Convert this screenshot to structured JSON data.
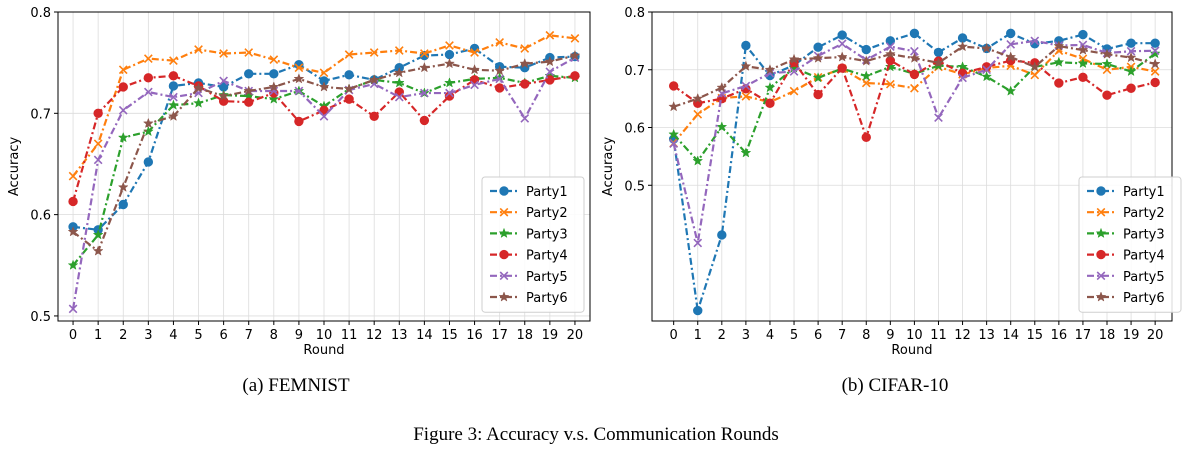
{
  "figure_caption": "Figure 3: Accuracy v.s. Communication Rounds",
  "chart_data": [
    {
      "type": "line",
      "subcaption": "(a) FEMNIST",
      "xlabel": "Round",
      "ylabel": "Accuracy",
      "x": [
        0,
        1,
        2,
        3,
        4,
        5,
        6,
        7,
        8,
        9,
        10,
        11,
        12,
        13,
        14,
        15,
        16,
        17,
        18,
        19,
        20
      ],
      "xlim": [
        -0.6,
        20.6
      ],
      "ylim": [
        0.495,
        0.8
      ],
      "yticks": [
        0.5,
        0.6,
        0.7,
        0.8
      ],
      "ytick_labels": [
        "0.5",
        "0.6",
        "0.7",
        "0.8"
      ],
      "grid": true,
      "legend_position": "lower-right",
      "series": [
        {
          "name": "Party1",
          "color": "#1f77b4",
          "marker": "circle",
          "values": [
            0.588,
            0.585,
            0.61,
            0.652,
            0.727,
            0.73,
            0.726,
            0.739,
            0.739,
            0.748,
            0.732,
            0.738,
            0.733,
            0.745,
            0.757,
            0.758,
            0.764,
            0.746,
            0.745,
            0.755,
            0.756
          ]
        },
        {
          "name": "Party2",
          "color": "#ff7f0e",
          "marker": "x",
          "values": [
            0.638,
            0.67,
            0.743,
            0.754,
            0.752,
            0.763,
            0.759,
            0.76,
            0.753,
            0.745,
            0.74,
            0.758,
            0.76,
            0.762,
            0.759,
            0.767,
            0.76,
            0.77,
            0.764,
            0.777,
            0.774
          ]
        },
        {
          "name": "Party3",
          "color": "#2ca02c",
          "marker": "star",
          "values": [
            0.55,
            0.58,
            0.676,
            0.682,
            0.708,
            0.71,
            0.718,
            0.717,
            0.714,
            0.722,
            0.707,
            0.724,
            0.733,
            0.73,
            0.72,
            0.73,
            0.734,
            0.735,
            0.73,
            0.737,
            0.735
          ]
        },
        {
          "name": "Party4",
          "color": "#d62728",
          "marker": "circle",
          "values": [
            0.613,
            0.7,
            0.726,
            0.735,
            0.737,
            0.727,
            0.712,
            0.711,
            0.72,
            0.692,
            0.703,
            0.714,
            0.697,
            0.721,
            0.693,
            0.717,
            0.733,
            0.725,
            0.729,
            0.733,
            0.737
          ]
        },
        {
          "name": "Party5",
          "color": "#9467bd",
          "marker": "x",
          "values": [
            0.507,
            0.654,
            0.703,
            0.721,
            0.716,
            0.72,
            0.732,
            0.722,
            0.722,
            0.722,
            0.697,
            0.723,
            0.729,
            0.716,
            0.72,
            0.72,
            0.728,
            0.734,
            0.695,
            0.741,
            0.755
          ]
        },
        {
          "name": "Party6",
          "color": "#8c564b",
          "marker": "star",
          "values": [
            0.583,
            0.564,
            0.627,
            0.69,
            0.697,
            0.725,
            0.717,
            0.722,
            0.726,
            0.734,
            0.726,
            0.724,
            0.733,
            0.74,
            0.745,
            0.749,
            0.743,
            0.742,
            0.749,
            0.751,
            0.757
          ]
        }
      ]
    },
    {
      "type": "line",
      "subcaption": "(b) CIFAR-10",
      "xlabel": "Round",
      "ylabel": "Accuracy",
      "x": [
        0,
        1,
        2,
        3,
        4,
        5,
        6,
        7,
        8,
        9,
        10,
        11,
        12,
        13,
        14,
        15,
        16,
        17,
        18,
        19,
        20
      ],
      "xlim": [
        -0.9,
        20.7
      ],
      "ylim": [
        0.265,
        0.8
      ],
      "yticks": [
        0.5,
        0.6,
        0.7,
        0.8
      ],
      "ytick_labels": [
        "0.5",
        "0.6",
        "0.7",
        "0.8"
      ],
      "grid": true,
      "legend_position": "lower-right",
      "series": [
        {
          "name": "Party1",
          "color": "#1f77b4",
          "marker": "circle",
          "values": [
            0.58,
            0.283,
            0.414,
            0.742,
            0.69,
            0.708,
            0.739,
            0.76,
            0.735,
            0.75,
            0.763,
            0.73,
            0.755,
            0.737,
            0.763,
            0.745,
            0.75,
            0.761,
            0.736,
            0.746,
            0.746
          ]
        },
        {
          "name": "Party2",
          "color": "#ff7f0e",
          "marker": "x",
          "values": [
            0.573,
            0.623,
            0.651,
            0.654,
            0.644,
            0.663,
            0.687,
            0.702,
            0.677,
            0.675,
            0.668,
            0.705,
            0.692,
            0.703,
            0.707,
            0.691,
            0.733,
            0.719,
            0.7,
            0.705,
            0.697
          ]
        },
        {
          "name": "Party3",
          "color": "#2ca02c",
          "marker": "star",
          "values": [
            0.588,
            0.542,
            0.601,
            0.556,
            0.669,
            0.703,
            0.686,
            0.702,
            0.689,
            0.705,
            0.693,
            0.707,
            0.705,
            0.688,
            0.663,
            0.705,
            0.713,
            0.711,
            0.71,
            0.697,
            0.728
          ]
        },
        {
          "name": "Party4",
          "color": "#d62728",
          "marker": "circle",
          "values": [
            0.672,
            0.642,
            0.65,
            0.667,
            0.642,
            0.713,
            0.657,
            0.703,
            0.583,
            0.716,
            0.692,
            0.715,
            0.694,
            0.705,
            0.716,
            0.712,
            0.677,
            0.687,
            0.656,
            0.668,
            0.678
          ]
        },
        {
          "name": "Party5",
          "color": "#9467bd",
          "marker": "x",
          "values": [
            0.572,
            0.4,
            0.659,
            0.672,
            0.694,
            0.697,
            0.724,
            0.745,
            0.717,
            0.74,
            0.732,
            0.617,
            0.686,
            0.7,
            0.744,
            0.75,
            0.742,
            0.743,
            0.729,
            0.732,
            0.733
          ]
        },
        {
          "name": "Party6",
          "color": "#8c564b",
          "marker": "star",
          "values": [
            0.636,
            0.65,
            0.669,
            0.706,
            0.7,
            0.718,
            0.72,
            0.722,
            0.715,
            0.727,
            0.72,
            0.712,
            0.74,
            0.737,
            0.722,
            0.705,
            0.741,
            0.734,
            0.727,
            0.721,
            0.71
          ]
        }
      ]
    }
  ]
}
